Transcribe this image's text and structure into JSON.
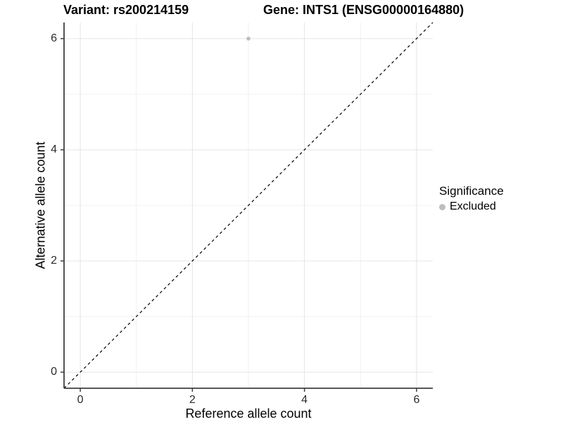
{
  "titles": {
    "variant": "Variant: rs200214159",
    "gene": "Gene: INTS1 (ENSG00000164880)"
  },
  "legend": {
    "title": "Significance",
    "items": [
      {
        "label": "Excluded",
        "color": "#bdbdbd"
      }
    ]
  },
  "chart_data": {
    "type": "scatter",
    "title": "Variant: rs200214159 | Gene: INTS1 (ENSG00000164880)",
    "xlabel": "Reference allele count",
    "ylabel": "Alternative allele count",
    "xlim": [
      -0.29,
      6.29
    ],
    "ylim": [
      -0.29,
      6.29
    ],
    "x_ticks": [
      0,
      2,
      4,
      6
    ],
    "y_ticks": [
      0,
      2,
      4,
      6
    ],
    "x_minor_ticks": [
      1,
      3,
      5
    ],
    "y_minor_ticks": [
      1,
      3,
      5
    ],
    "grid": "major+minor",
    "legend_position": "right",
    "series": [
      {
        "name": "Excluded",
        "color": "#bdbdbd",
        "points": [
          {
            "x": 3,
            "y": 6
          }
        ]
      }
    ],
    "reference_line": {
      "label": "identity",
      "slope": 1,
      "intercept": 0,
      "style": "dashed",
      "color": "#000000"
    }
  },
  "style": {
    "point_color": "#bdbdbd",
    "grid_major_color": "#e4e4e4",
    "grid_minor_color": "#f1f1f1",
    "axis_line_color": "#3f3f3f",
    "tick_label_color": "#2b2b2b",
    "background": "#ffffff"
  }
}
